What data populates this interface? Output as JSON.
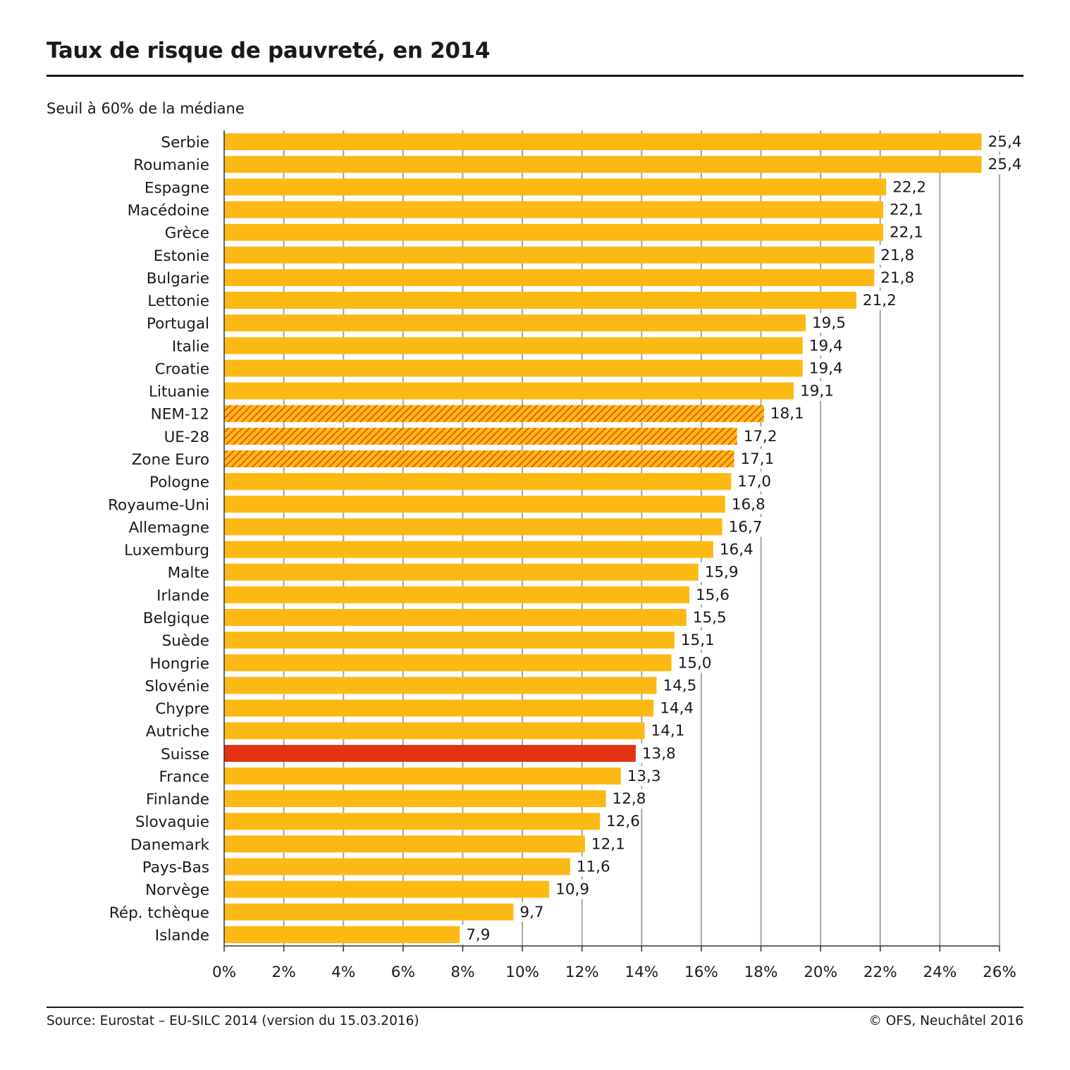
{
  "title": "Taux de risque de pauvreté, en 2014",
  "subtitle": "Seuil à 60% de la médiane",
  "source": "Source: Eurostat – EU-SILC 2014 (version du 15.03.2016)",
  "credit": "© OFS, Neuchâtel 2016",
  "colors": {
    "bar": "#FDB913",
    "aggregate_hatch": "#E8430F",
    "highlight": "#E2320F",
    "grid": "#a6a6a6",
    "axis": "#333333"
  },
  "chart_data": {
    "type": "bar",
    "orientation": "horizontal",
    "categories": [
      "Serbie",
      "Roumanie",
      "Espagne",
      "Macédoine",
      "Grèce",
      "Estonie",
      "Bulgarie",
      "Lettonie",
      "Portugal",
      "Italie",
      "Croatie",
      "Lituanie",
      "NEM-12",
      "UE-28",
      "Zone Euro",
      "Pologne",
      "Royaume-Uni",
      "Allemagne",
      "Luxemburg",
      "Malte",
      "Irlande",
      "Belgique",
      "Suède",
      "Hongrie",
      "Slovénie",
      "Chypre",
      "Autriche",
      "Suisse",
      "France",
      "Finlande",
      "Slovaquie",
      "Danemark",
      "Pays-Bas",
      "Norvège",
      "Rép. tchèque",
      "Islande"
    ],
    "values": [
      25.4,
      25.4,
      22.2,
      22.1,
      22.1,
      21.8,
      21.8,
      21.2,
      19.5,
      19.4,
      19.4,
      19.1,
      18.1,
      17.2,
      17.1,
      17.0,
      16.8,
      16.7,
      16.4,
      15.9,
      15.6,
      15.5,
      15.1,
      15.0,
      14.5,
      14.4,
      14.1,
      13.8,
      13.3,
      12.8,
      12.6,
      12.1,
      11.6,
      10.9,
      9.7,
      7.9
    ],
    "value_labels": [
      "25,4",
      "25,4",
      "22,2",
      "22,1",
      "22,1",
      "21,8",
      "21,8",
      "21,2",
      "19,5",
      "19,4",
      "19,4",
      "19,1",
      "18,1",
      "17,2",
      "17,1",
      "17,0",
      "16,8",
      "16,7",
      "16,4",
      "15,9",
      "15,6",
      "15,5",
      "15,1",
      "15,0",
      "14,5",
      "14,4",
      "14,1",
      "13,8",
      "13,3",
      "12,8",
      "12,6",
      "12,1",
      "11,6",
      "10,9",
      "9,7",
      "7,9"
    ],
    "styles": [
      "normal",
      "normal",
      "normal",
      "normal",
      "normal",
      "normal",
      "normal",
      "normal",
      "normal",
      "normal",
      "normal",
      "normal",
      "hatched",
      "hatched",
      "hatched",
      "normal",
      "normal",
      "normal",
      "normal",
      "normal",
      "normal",
      "normal",
      "normal",
      "normal",
      "normal",
      "normal",
      "normal",
      "highlight",
      "normal",
      "normal",
      "normal",
      "normal",
      "normal",
      "normal",
      "normal",
      "normal"
    ],
    "xlim": [
      0,
      26
    ],
    "xticks": [
      0,
      2,
      4,
      6,
      8,
      10,
      12,
      14,
      16,
      18,
      20,
      22,
      24,
      26
    ],
    "xtick_labels": [
      "0%",
      "2%",
      "4%",
      "6%",
      "8%",
      "10%",
      "12%",
      "14%",
      "16%",
      "18%",
      "20%",
      "22%",
      "24%",
      "26%"
    ],
    "grid": true,
    "legend": "none"
  }
}
